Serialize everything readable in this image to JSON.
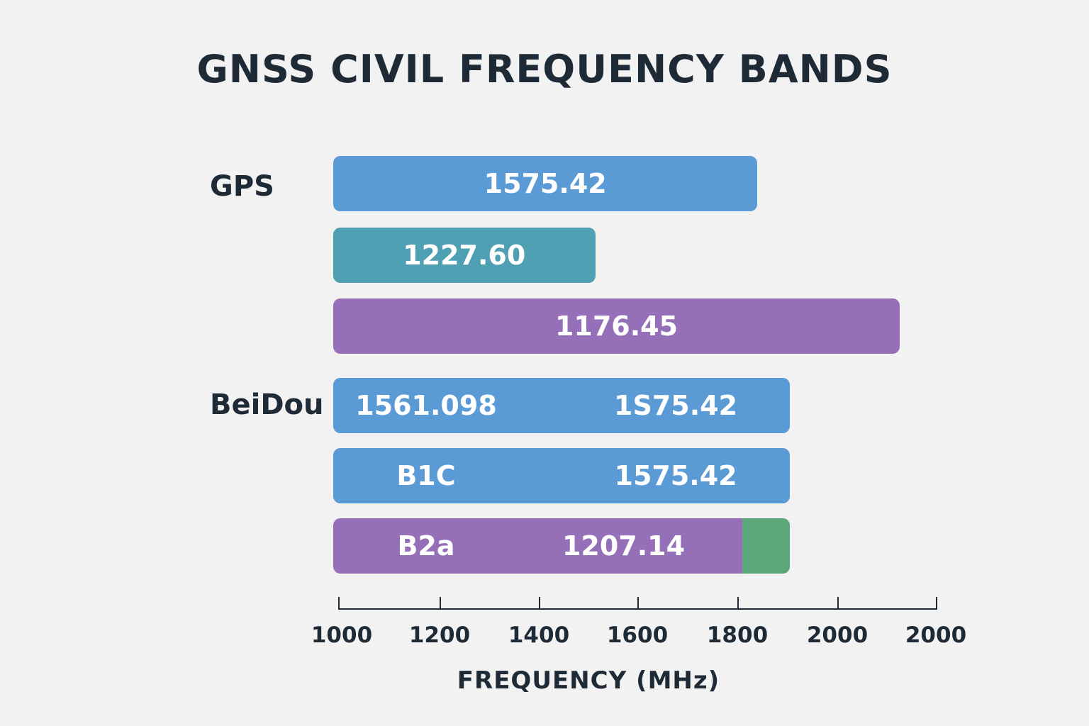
{
  "chart_data": {
    "type": "bar",
    "orientation": "horizontal",
    "title": "GNSS CIVIL FREQUENCY BANDS",
    "xlabel": "FREQUENCY (MHz)",
    "ylabel": "",
    "x_tick_labels": [
      "1000",
      "1200",
      "1400",
      "1600",
      "1800",
      "2000",
      "2000"
    ],
    "groups": [
      {
        "name": "GPS",
        "bars": [
          {
            "value": 1840,
            "color": "#5b9bd5",
            "segments": [
              {
                "label": "1575.42"
              }
            ]
          },
          {
            "value": 1515,
            "color": "#4fa0b3",
            "segments": [
              {
                "label": "1227.60"
              }
            ]
          },
          {
            "value": 2125,
            "color": "#9570b8",
            "segments": [
              {
                "label": "1176.45"
              }
            ]
          }
        ]
      },
      {
        "name": "BeiDou",
        "bars": [
          {
            "value": 1905,
            "color": "#5b9bd5",
            "segments": [
              {
                "label": "1561.098"
              },
              {
                "label": "1S75.42"
              }
            ]
          },
          {
            "value": 1905,
            "color": "#5b9bd5",
            "segments": [
              {
                "label": "B1C"
              },
              {
                "label": "1575.42"
              }
            ]
          },
          {
            "value": 1905,
            "color": "#9570b8",
            "segments": [
              {
                "label": "B2a"
              },
              {
                "label": "1207.14"
              }
            ],
            "end_color": "#5aa77a"
          }
        ]
      }
    ]
  }
}
